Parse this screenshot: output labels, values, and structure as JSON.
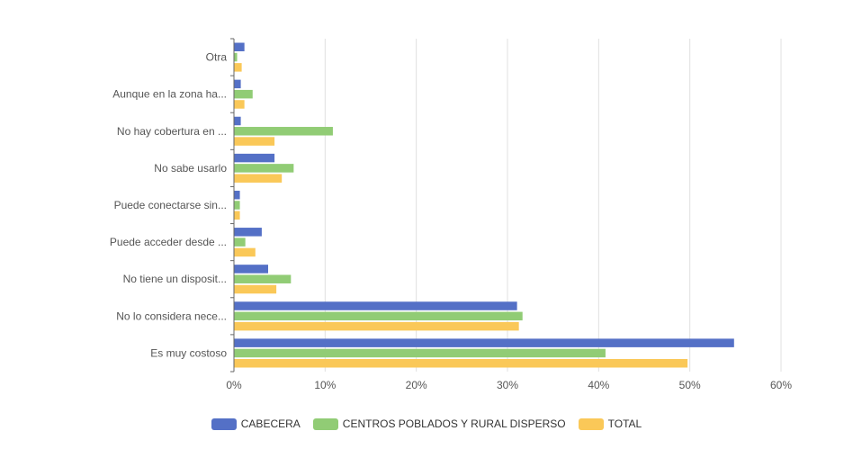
{
  "chart_data": {
    "type": "bar",
    "orientation": "horizontal",
    "categories": [
      "Otra",
      "Aunque en la zona ha...",
      "No hay cobertura en ...",
      "No sabe usarlo",
      "Puede conectarse sin...",
      "Puede acceder desde ...",
      "No tiene un disposit...",
      "No lo considera nece...",
      "Es muy costoso"
    ],
    "series": [
      {
        "name": "CABECERA",
        "color": "#5470c6",
        "values": [
          1.1,
          0.7,
          0.7,
          4.4,
          0.6,
          3.0,
          3.7,
          31.0,
          54.8
        ]
      },
      {
        "name": "CENTROS POBLADOS Y RURAL DISPERSO",
        "color": "#91cc75",
        "values": [
          0.3,
          2.0,
          10.8,
          6.5,
          0.6,
          1.2,
          6.2,
          31.6,
          40.7
        ]
      },
      {
        "name": "TOTAL",
        "color": "#fac858",
        "values": [
          0.8,
          1.1,
          4.4,
          5.2,
          0.6,
          2.3,
          4.6,
          31.2,
          49.7
        ]
      }
    ],
    "x_ticks": [
      "0%",
      "10%",
      "20%",
      "30%",
      "40%",
      "50%",
      "60%"
    ],
    "xlim": [
      0,
      60
    ],
    "grid": true,
    "legend_position": "bottom"
  }
}
